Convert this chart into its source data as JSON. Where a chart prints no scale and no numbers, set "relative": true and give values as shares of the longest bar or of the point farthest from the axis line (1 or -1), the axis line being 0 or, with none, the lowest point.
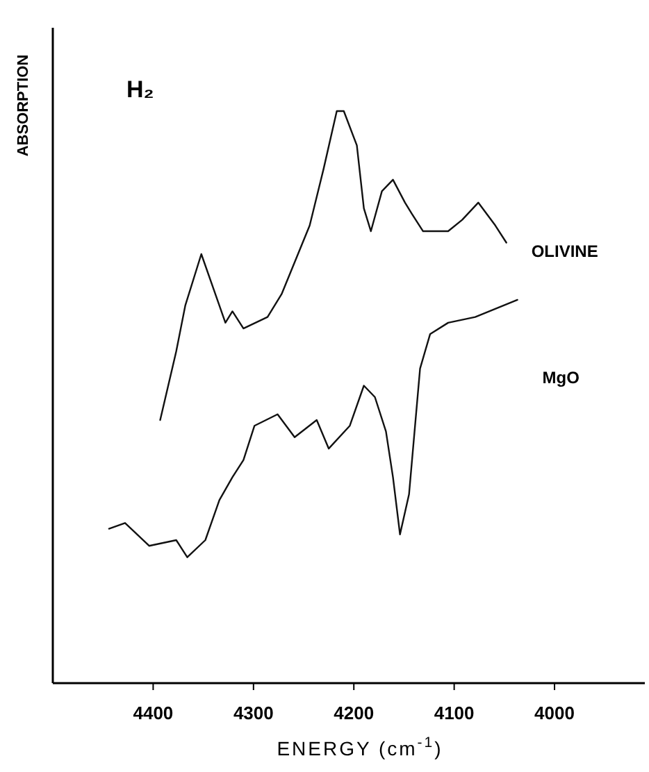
{
  "chart_data": {
    "type": "line",
    "relative": true,
    "xlabel": "ENERGY (cm$^{-1}$)",
    "ylabel": "ABSORPTION",
    "annotations": [
      "H₂"
    ],
    "xlim": [
      4500,
      3910
    ],
    "xticks": [
      4400,
      4300,
      4200,
      4100,
      4000
    ],
    "grid": false,
    "marker": "none",
    "line_style": "solid",
    "series": [
      {
        "name": "OLIVINE",
        "color": "#111111",
        "x": [
          4393,
          4377,
          4368,
          4352,
          4338,
          4328,
          4321,
          4310,
          4286,
          4272,
          4244,
          4230,
          4217,
          4210,
          4197,
          4190,
          4183,
          4172,
          4161,
          4149,
          4142,
          4131,
          4106,
          4092,
          4076,
          4059,
          4048
        ],
        "values": [
          0.46,
          0.58,
          0.66,
          0.75,
          0.68,
          0.63,
          0.65,
          0.62,
          0.64,
          0.68,
          0.8,
          0.9,
          1,
          1,
          0.94,
          0.83,
          0.79,
          0.86,
          0.88,
          0.84,
          0.82,
          0.79,
          0.79,
          0.81,
          0.84,
          0.8,
          0.77
        ]
      },
      {
        "name": "MgO",
        "color": "#111111",
        "x": [
          4444,
          4428,
          4404,
          4377,
          4366,
          4348,
          4334,
          4321,
          4310,
          4299,
          4276,
          4259,
          4237,
          4225,
          4204,
          4190,
          4179,
          4168,
          4161,
          4154,
          4145,
          4134,
          4124,
          4106,
          4079,
          4051,
          4037
        ],
        "values": [
          0.27,
          0.28,
          0.24,
          0.25,
          0.22,
          0.25,
          0.32,
          0.36,
          0.39,
          0.45,
          0.47,
          0.43,
          0.46,
          0.41,
          0.45,
          0.52,
          0.5,
          0.44,
          0.36,
          0.26,
          0.33,
          0.55,
          0.61,
          0.63,
          0.64,
          0.66,
          0.67
        ]
      }
    ]
  }
}
